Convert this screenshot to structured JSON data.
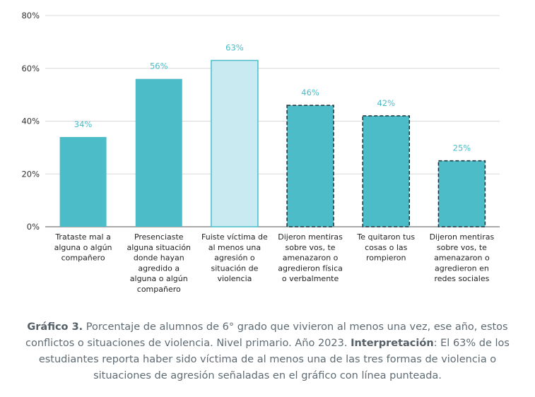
{
  "chart_data": {
    "type": "bar",
    "ylim": [
      0,
      80
    ],
    "yticks": [
      {
        "value": 0,
        "label": "0%"
      },
      {
        "value": 20,
        "label": "20%"
      },
      {
        "value": 40,
        "label": "40%"
      },
      {
        "value": 60,
        "label": "60%"
      },
      {
        "value": 80,
        "label": "80%"
      }
    ],
    "grid": true,
    "bars": [
      {
        "value": 34,
        "label": "34%",
        "style": "solid",
        "category": [
          "Trataste mal a",
          "alguna o algún",
          "compañero"
        ]
      },
      {
        "value": 56,
        "label": "56%",
        "style": "solid",
        "category": [
          "Presenciaste",
          "alguna situación",
          "donde hayan",
          "agredido a",
          "alguna o algún",
          "compañero"
        ]
      },
      {
        "value": 63,
        "label": "63%",
        "style": "light",
        "category": [
          "Fuiste víctima de",
          "al menos una",
          "agresión o",
          "situación de",
          "violencia"
        ]
      },
      {
        "value": 46,
        "label": "46%",
        "style": "dashed",
        "category": [
          "Dijeron mentiras",
          "sobre vos, te",
          "amenazaron o",
          "agredieron física",
          "o verbalmente"
        ]
      },
      {
        "value": 42,
        "label": "42%",
        "style": "dashed",
        "category": [
          "Te quitaron tus",
          "cosas o las",
          "rompieron"
        ]
      },
      {
        "value": 25,
        "label": "25%",
        "style": "dashed",
        "category": [
          "Dijeron mentiras",
          "sobre vos, te",
          "amenazaron o",
          "agredieron en",
          "redes sociales"
        ]
      }
    ],
    "colors": {
      "bar": "#4bbcc8",
      "bar_light": "#c8eaf0",
      "bar_light_stroke": "#4bbcc8",
      "dashed_stroke": "#1f2f36",
      "grid": "#d9d9d9",
      "axis": "#555555"
    }
  },
  "caption": {
    "lead_bold": "Gráfico 3.",
    "lead_text": " Porcentaje de alumnos de 6° grado que vivieron al menos una vez, ese año, estos conflictos o situaciones de violencia. Nivel primario. Año 2023. ",
    "interp_bold": "Interpretación",
    "interp_text": ": El 63% de los estudiantes reporta haber sido víctima de al menos una de las tres formas de violencia o situaciones de agresión señaladas en el gráfico con línea punteada."
  }
}
